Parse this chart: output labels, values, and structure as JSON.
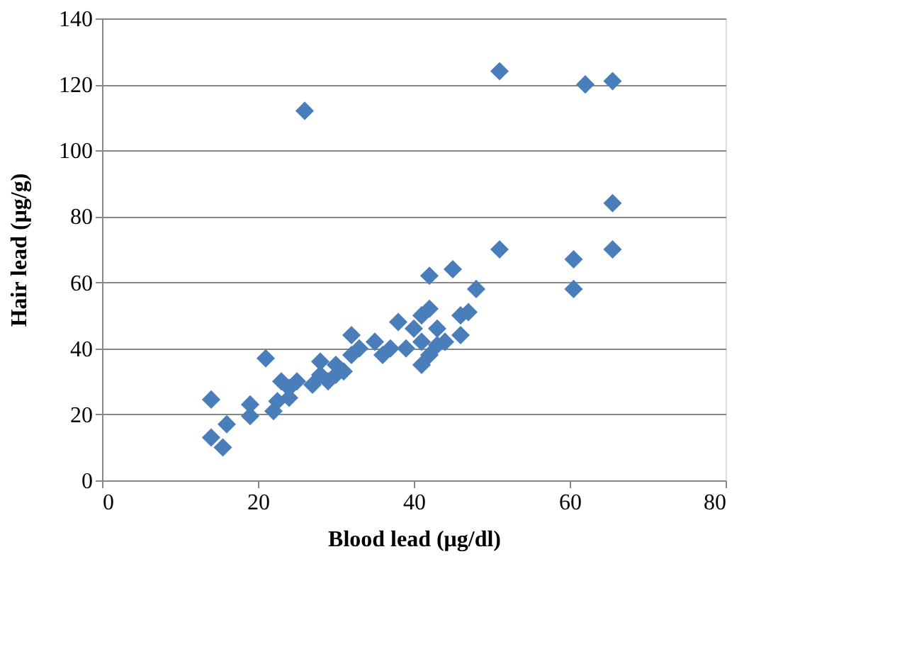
{
  "chart_data": {
    "type": "scatter",
    "xlabel": "Blood lead (μg/dl)",
    "ylabel": "Hair lead (μg/g)",
    "x": [
      14,
      14,
      15.5,
      16,
      19,
      19,
      21,
      22,
      22.5,
      23,
      24,
      24,
      25,
      26,
      27,
      28,
      28,
      29,
      30,
      30,
      31,
      32,
      32,
      33,
      35,
      36,
      37,
      38,
      39,
      40,
      41,
      41,
      41,
      42,
      42,
      42,
      43,
      43,
      44,
      45,
      46,
      46,
      47,
      48,
      51,
      51,
      60.5,
      60.5,
      62,
      65.5,
      65.5,
      65.5
    ],
    "series": [
      {
        "color": "#4a7ebb",
        "values": [
          13,
          24.5,
          10,
          17,
          19.5,
          23,
          37,
          21,
          24,
          30,
          28,
          25,
          30,
          112,
          29,
          36,
          32,
          30,
          35,
          32,
          33,
          44,
          38,
          40,
          42,
          38,
          40,
          48,
          40,
          46,
          50,
          42,
          35,
          52,
          38,
          62,
          46,
          41,
          42,
          64,
          44,
          50,
          51,
          58,
          124,
          70,
          67,
          58,
          120,
          121,
          84,
          70
        ]
      }
    ],
    "marker": "diamond",
    "xlim": [
      0,
      80
    ],
    "xticks": [
      0,
      20,
      40,
      60,
      80
    ],
    "ylim": [
      0,
      140
    ],
    "yticks": [
      0,
      20,
      40,
      60,
      80,
      100,
      120,
      140
    ],
    "grid": "y"
  }
}
